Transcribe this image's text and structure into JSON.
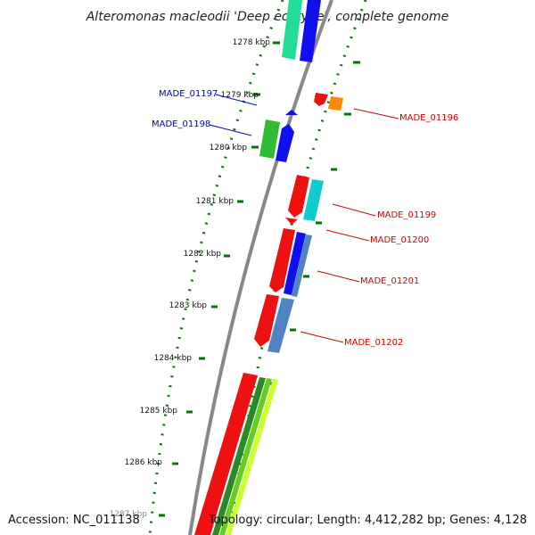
{
  "title": "Alteromonas macleodii 'Deep ecotype', complete genome",
  "kbp_ticks": [
    "1278 kbp",
    "1279 kbp",
    "1280 kbp",
    "1281 kbp",
    "1282 kbp",
    "1283 kbp",
    "1284 kbp",
    "1285 kbp",
    "1286 kbp",
    "1287 kbp"
  ],
  "gene_labels": {
    "made_01197": "MADE_01197",
    "made_01198": "MADE_01198",
    "made_01196": "MADE_01196",
    "made_01199": "MADE_01199",
    "made_01200": "MADE_01200",
    "made_01201": "MADE_01201",
    "made_01202": "MADE_01202"
  },
  "footer": {
    "accession": "Accession: NC_011138",
    "topology": "Topology: circular; Length: 4,412,282 bp; Genes: 4,128"
  },
  "colors": {
    "left_labels": "#0000cc",
    "right_labels": "#cc0000",
    "dotted_ring": "#007700",
    "backbone": "#888888"
  }
}
